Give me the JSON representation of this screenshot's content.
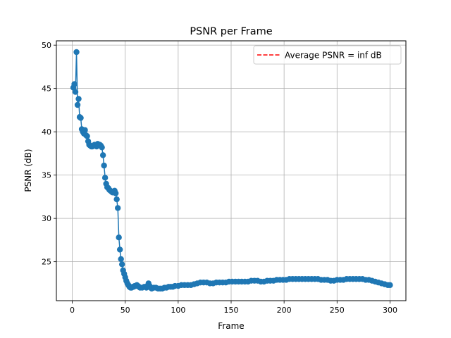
{
  "chart_data": {
    "type": "line",
    "title": "PSNR per Frame",
    "xlabel": "Frame",
    "ylabel": "PSNR (dB)",
    "xlim": [
      -15,
      315
    ],
    "ylim": [
      20.5,
      50.5
    ],
    "xticks": [
      0,
      50,
      100,
      150,
      200,
      250,
      300
    ],
    "yticks": [
      25,
      30,
      35,
      40,
      45,
      50
    ],
    "grid": true,
    "legend": {
      "position": "top-right",
      "label": "Average PSNR = inf dB",
      "line_color": "#ff0000",
      "line_style": "dashed"
    },
    "series": [
      {
        "color": "#1f77b4",
        "marker": "circle",
        "points": [
          [
            1,
            45.1
          ],
          [
            2,
            45.5
          ],
          [
            3,
            44.6
          ],
          [
            4,
            49.2
          ],
          [
            5,
            43.1
          ],
          [
            6,
            43.8
          ],
          [
            7,
            41.7
          ],
          [
            8,
            41.6
          ],
          [
            9,
            40.3
          ],
          [
            10,
            40.0
          ],
          [
            11,
            39.8
          ],
          [
            12,
            40.2
          ],
          [
            13,
            39.6
          ],
          [
            14,
            39.5
          ],
          [
            15,
            38.9
          ],
          [
            16,
            38.5
          ],
          [
            17,
            38.4
          ],
          [
            18,
            38.3
          ],
          [
            19,
            38.3
          ],
          [
            20,
            38.4
          ],
          [
            21,
            38.5
          ],
          [
            22,
            38.4
          ],
          [
            23,
            38.3
          ],
          [
            24,
            38.6
          ],
          [
            25,
            38.5
          ],
          [
            26,
            38.5
          ],
          [
            27,
            38.4
          ],
          [
            28,
            38.2
          ],
          [
            29,
            37.3
          ],
          [
            30,
            36.1
          ],
          [
            31,
            34.7
          ],
          [
            32,
            34.0
          ],
          [
            33,
            33.6
          ],
          [
            34,
            33.5
          ],
          [
            35,
            33.3
          ],
          [
            36,
            33.2
          ],
          [
            37,
            33.1
          ],
          [
            38,
            33.0
          ],
          [
            39,
            33.1
          ],
          [
            40,
            33.2
          ],
          [
            41,
            32.9
          ],
          [
            42,
            32.2
          ],
          [
            43,
            31.2
          ],
          [
            44,
            27.8
          ],
          [
            45,
            26.4
          ],
          [
            46,
            25.3
          ],
          [
            47,
            24.7
          ],
          [
            48,
            24.0
          ],
          [
            49,
            23.6
          ],
          [
            50,
            23.2
          ],
          [
            51,
            22.8
          ],
          [
            52,
            22.5
          ],
          [
            53,
            22.3
          ],
          [
            54,
            22.1
          ],
          [
            55,
            22.0
          ],
          [
            56,
            22.0
          ],
          [
            57,
            22.1
          ],
          [
            58,
            22.1
          ],
          [
            59,
            22.2
          ],
          [
            60,
            22.2
          ],
          [
            61,
            22.3
          ],
          [
            62,
            22.2
          ],
          [
            63,
            22.1
          ],
          [
            64,
            22.0
          ],
          [
            66,
            22.0
          ],
          [
            68,
            22.1
          ],
          [
            70,
            22.0
          ],
          [
            71,
            22.2
          ],
          [
            72,
            22.5
          ],
          [
            73,
            22.2
          ],
          [
            74,
            22.0
          ],
          [
            75,
            21.9
          ],
          [
            77,
            22.0
          ],
          [
            79,
            22.0
          ],
          [
            81,
            21.9
          ],
          [
            83,
            21.9
          ],
          [
            85,
            21.9
          ],
          [
            87,
            22.0
          ],
          [
            89,
            22.0
          ],
          [
            91,
            22.1
          ],
          [
            93,
            22.1
          ],
          [
            95,
            22.1
          ],
          [
            97,
            22.2
          ],
          [
            100,
            22.2
          ],
          [
            103,
            22.3
          ],
          [
            106,
            22.3
          ],
          [
            109,
            22.3
          ],
          [
            112,
            22.3
          ],
          [
            115,
            22.4
          ],
          [
            118,
            22.5
          ],
          [
            121,
            22.6
          ],
          [
            124,
            22.6
          ],
          [
            127,
            22.6
          ],
          [
            130,
            22.5
          ],
          [
            133,
            22.5
          ],
          [
            136,
            22.6
          ],
          [
            139,
            22.6
          ],
          [
            142,
            22.6
          ],
          [
            145,
            22.6
          ],
          [
            148,
            22.7
          ],
          [
            151,
            22.7
          ],
          [
            154,
            22.7
          ],
          [
            157,
            22.7
          ],
          [
            160,
            22.7
          ],
          [
            163,
            22.7
          ],
          [
            166,
            22.7
          ],
          [
            169,
            22.8
          ],
          [
            172,
            22.8
          ],
          [
            175,
            22.8
          ],
          [
            178,
            22.7
          ],
          [
            181,
            22.7
          ],
          [
            184,
            22.8
          ],
          [
            187,
            22.8
          ],
          [
            190,
            22.8
          ],
          [
            193,
            22.9
          ],
          [
            196,
            22.9
          ],
          [
            199,
            22.9
          ],
          [
            202,
            22.9
          ],
          [
            205,
            23.0
          ],
          [
            208,
            23.0
          ],
          [
            211,
            23.0
          ],
          [
            214,
            23.0
          ],
          [
            217,
            23.0
          ],
          [
            220,
            23.0
          ],
          [
            223,
            23.0
          ],
          [
            226,
            23.0
          ],
          [
            229,
            23.0
          ],
          [
            232,
            23.0
          ],
          [
            235,
            22.9
          ],
          [
            238,
            22.9
          ],
          [
            241,
            22.9
          ],
          [
            244,
            22.8
          ],
          [
            247,
            22.8
          ],
          [
            250,
            22.9
          ],
          [
            253,
            22.9
          ],
          [
            256,
            22.9
          ],
          [
            259,
            23.0
          ],
          [
            262,
            23.0
          ],
          [
            265,
            23.0
          ],
          [
            268,
            23.0
          ],
          [
            271,
            23.0
          ],
          [
            274,
            23.0
          ],
          [
            277,
            22.9
          ],
          [
            280,
            22.9
          ],
          [
            283,
            22.8
          ],
          [
            286,
            22.7
          ],
          [
            289,
            22.6
          ],
          [
            292,
            22.5
          ],
          [
            295,
            22.4
          ],
          [
            298,
            22.3
          ],
          [
            300,
            22.3
          ]
        ]
      }
    ]
  }
}
